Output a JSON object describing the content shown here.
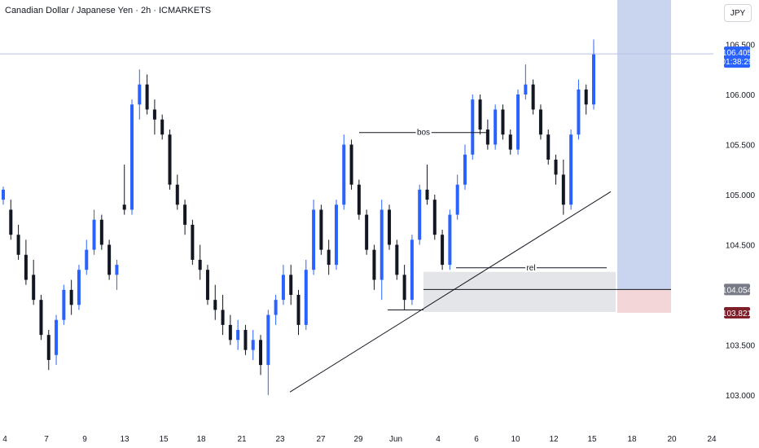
{
  "header": {
    "symbol_title": "Canadian Dollar / Japanese Yen · 2h · ICMARKETS",
    "currency": "JPY"
  },
  "colors": {
    "up": "#2962ff",
    "down": "#131722",
    "target_zone": "#c9d4ee",
    "stop_zone": "#f3d6d8",
    "demand_zone": "#e4e5e8",
    "price_line": "#b8c2e8",
    "current_tag": "#2962ff",
    "entry_tag": "#787b86",
    "stop_tag": "#7f1f2a"
  },
  "chart_data": {
    "type": "candlestick",
    "title": "Canadian Dollar / Japanese Yen · 2h · ICMARKETS",
    "ylim": [
      102.95,
      106.65
    ],
    "y_ticks": [
      "106.500",
      "106.000",
      "105.500",
      "105.000",
      "104.500",
      "104.054",
      "103.500",
      "103.000"
    ],
    "x_ticks": [
      "4",
      "7",
      "9",
      "13",
      "15",
      "18",
      "21",
      "23",
      "27",
      "29",
      "Jun",
      "4",
      "6",
      "10",
      "12",
      "15",
      "18",
      "20",
      "24"
    ],
    "series": [
      {
        "values": [
          [
            104.95,
            105.08,
            104.9,
            105.05
          ],
          [
            104.85,
            104.95,
            104.55,
            104.6
          ],
          [
            104.6,
            104.7,
            104.35,
            104.4
          ],
          [
            104.4,
            104.55,
            104.1,
            104.15
          ],
          [
            104.2,
            104.35,
            103.9,
            103.95
          ],
          [
            103.95,
            104.0,
            103.55,
            103.6
          ],
          [
            103.6,
            103.65,
            103.25,
            103.35
          ],
          [
            103.4,
            103.8,
            103.3,
            103.75
          ],
          [
            103.75,
            104.1,
            103.7,
            104.05
          ],
          [
            104.05,
            104.15,
            103.8,
            103.9
          ],
          [
            103.9,
            104.3,
            103.85,
            104.25
          ],
          [
            104.25,
            104.55,
            104.2,
            104.45
          ],
          [
            104.45,
            104.85,
            104.4,
            104.75
          ],
          [
            104.75,
            104.8,
            104.45,
            104.5
          ],
          [
            104.5,
            104.55,
            104.15,
            104.2
          ],
          [
            104.2,
            104.35,
            104.05,
            104.3
          ],
          [
            104.9,
            105.3,
            104.8,
            104.85
          ],
          [
            104.85,
            105.95,
            104.8,
            105.9
          ],
          [
            105.9,
            106.25,
            105.75,
            106.1
          ],
          [
            106.1,
            106.2,
            105.8,
            105.85
          ],
          [
            105.85,
            105.95,
            105.6,
            105.75
          ],
          [
            105.75,
            105.8,
            105.55,
            105.6
          ],
          [
            105.6,
            105.65,
            105.05,
            105.1
          ],
          [
            105.1,
            105.2,
            104.85,
            104.9
          ],
          [
            104.9,
            104.95,
            104.6,
            104.7
          ],
          [
            104.7,
            104.75,
            104.3,
            104.35
          ],
          [
            104.35,
            104.5,
            104.15,
            104.25
          ],
          [
            104.25,
            104.3,
            103.9,
            103.95
          ],
          [
            103.95,
            104.1,
            103.75,
            103.85
          ],
          [
            103.85,
            104.0,
            103.6,
            103.7
          ],
          [
            103.7,
            103.8,
            103.5,
            103.55
          ],
          [
            103.55,
            103.75,
            103.45,
            103.65
          ],
          [
            103.65,
            103.7,
            103.4,
            103.45
          ],
          [
            103.45,
            103.65,
            103.35,
            103.55
          ],
          [
            103.55,
            103.6,
            103.2,
            103.3
          ],
          [
            103.3,
            103.85,
            103.0,
            103.8
          ],
          [
            103.8,
            104.0,
            103.7,
            103.95
          ],
          [
            103.95,
            104.3,
            103.9,
            104.2
          ],
          [
            104.2,
            104.3,
            103.9,
            104.0
          ],
          [
            104.0,
            104.05,
            103.6,
            103.7
          ],
          [
            103.7,
            104.35,
            103.65,
            104.25
          ],
          [
            104.25,
            104.95,
            104.2,
            104.85
          ],
          [
            104.85,
            104.9,
            104.4,
            104.45
          ],
          [
            104.45,
            104.55,
            104.2,
            104.3
          ],
          [
            104.3,
            104.95,
            104.25,
            104.9
          ],
          [
            104.9,
            105.6,
            104.85,
            105.5
          ],
          [
            105.5,
            105.55,
            105.05,
            105.1
          ],
          [
            105.1,
            105.15,
            104.75,
            104.8
          ],
          [
            104.8,
            104.85,
            104.4,
            104.45
          ],
          [
            104.45,
            104.5,
            104.05,
            104.15
          ],
          [
            104.15,
            104.95,
            103.95,
            104.85
          ],
          [
            104.85,
            104.9,
            104.45,
            104.5
          ],
          [
            104.5,
            104.55,
            104.15,
            104.2
          ],
          [
            104.2,
            104.3,
            103.85,
            103.95
          ],
          [
            103.95,
            104.6,
            103.9,
            104.55
          ],
          [
            104.55,
            105.1,
            104.5,
            105.05
          ],
          [
            105.05,
            105.3,
            104.9,
            104.95
          ],
          [
            104.95,
            105.0,
            104.55,
            104.6
          ],
          [
            104.6,
            104.65,
            104.25,
            104.3
          ],
          [
            104.3,
            104.85,
            104.25,
            104.8
          ],
          [
            104.8,
            105.2,
            104.75,
            105.1
          ],
          [
            105.1,
            105.5,
            105.05,
            105.4
          ],
          [
            105.4,
            106.0,
            105.35,
            105.95
          ],
          [
            105.95,
            106.0,
            105.6,
            105.65
          ],
          [
            105.65,
            105.75,
            105.45,
            105.5
          ],
          [
            105.5,
            105.9,
            105.45,
            105.85
          ],
          [
            105.85,
            105.9,
            105.55,
            105.6
          ],
          [
            105.6,
            105.65,
            105.4,
            105.45
          ],
          [
            105.45,
            106.05,
            105.4,
            106.0
          ],
          [
            106.0,
            106.3,
            105.95,
            106.1
          ],
          [
            106.1,
            106.15,
            105.8,
            105.85
          ],
          [
            105.85,
            105.9,
            105.55,
            105.6
          ],
          [
            105.6,
            105.65,
            105.3,
            105.35
          ],
          [
            105.35,
            105.4,
            105.1,
            105.2
          ],
          [
            105.2,
            105.35,
            104.8,
            104.9
          ],
          [
            104.9,
            105.65,
            104.85,
            105.6
          ],
          [
            105.6,
            106.15,
            105.55,
            106.05
          ],
          [
            106.05,
            106.1,
            105.8,
            105.9
          ],
          [
            105.9,
            106.55,
            105.85,
            106.4
          ]
        ]
      }
    ],
    "annotations": [
      {
        "text": "bos",
        "type": "horizontal-level",
        "price": 105.62
      },
      {
        "text": "rel",
        "type": "horizontal-level",
        "price": 104.27
      },
      {
        "type": "trendline",
        "from": [
          103.03
        ],
        "to": [
          105.03
        ]
      },
      {
        "type": "zone",
        "role": "demand",
        "range": [
          103.83,
          104.23
        ]
      },
      {
        "type": "position",
        "role": "target",
        "range": [
          104.054,
          106.65
        ]
      },
      {
        "type": "position",
        "role": "stop",
        "range": [
          103.821,
          104.054
        ]
      }
    ],
    "price_tags": [
      {
        "role": "current",
        "price": 106.405,
        "label": "106.405",
        "sublabel": "01:38:29"
      },
      {
        "role": "entry",
        "price": 104.054,
        "label": "104.054"
      },
      {
        "role": "stop",
        "price": 103.821,
        "label": "103.821"
      }
    ],
    "grid": false
  }
}
